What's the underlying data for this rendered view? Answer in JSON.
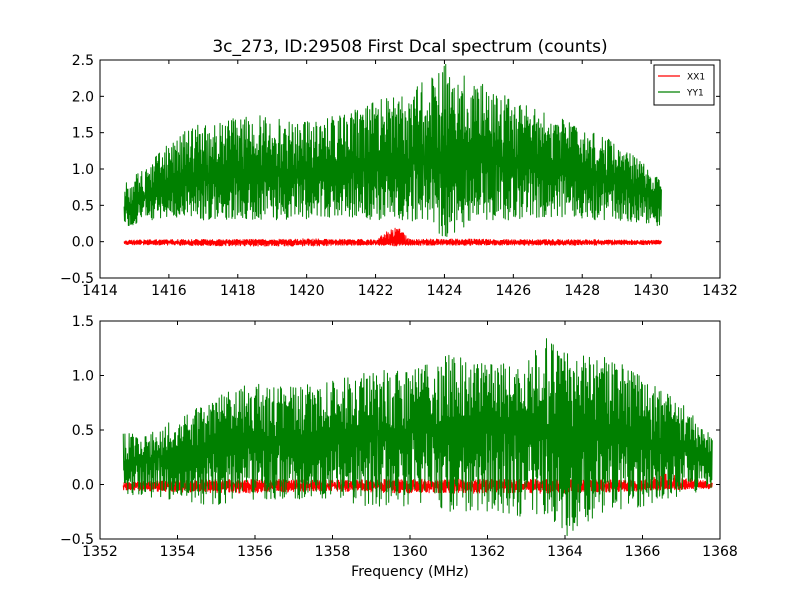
{
  "chart_data": [
    {
      "type": "line",
      "title": "3c_273, ID:29508 First Dcal spectrum (counts)",
      "xlabel": "",
      "ylabel": "",
      "xlim": [
        1414,
        1432
      ],
      "ylim": [
        -0.5,
        2.5
      ],
      "x_ticks": [
        "1414",
        "1416",
        "1418",
        "1420",
        "1422",
        "1424",
        "1426",
        "1428",
        "1430",
        "1432"
      ],
      "y_ticks": [
        "−0.5",
        "0.0",
        "0.5",
        "1.0",
        "1.5",
        "2.0",
        "2.5"
      ],
      "x_range": [
        1414.7,
        1430.3
      ],
      "legend": {
        "position": "top-right",
        "entries": [
          {
            "label": "XX1",
            "color": "#ff0000"
          },
          {
            "label": "YY1",
            "color": "#008000"
          }
        ]
      },
      "series": [
        {
          "name": "XX1",
          "color": "#ff0000",
          "x": [
            1414.7,
            1416,
            1418,
            1420,
            1422,
            1422.6,
            1423,
            1424,
            1426,
            1428,
            1430,
            1430.3
          ],
          "center": [
            -0.01,
            -0.01,
            -0.01,
            -0.01,
            -0.01,
            -0.01,
            -0.01,
            -0.01,
            -0.01,
            -0.01,
            -0.01,
            -0.01
          ],
          "upper": [
            0.02,
            0.03,
            0.03,
            0.04,
            0.03,
            0.23,
            0.03,
            0.04,
            0.03,
            0.03,
            0.02,
            0.02
          ],
          "lower": [
            -0.04,
            -0.05,
            -0.06,
            -0.06,
            -0.05,
            -0.06,
            -0.05,
            -0.05,
            -0.05,
            -0.05,
            -0.04,
            -0.04
          ]
        },
        {
          "name": "YY1",
          "color": "#008000",
          "x": [
            1414.7,
            1415.5,
            1416,
            1417,
            1418,
            1419,
            1420,
            1421,
            1422,
            1423,
            1424,
            1425,
            1426,
            1427,
            1428,
            1429,
            1430,
            1430.3
          ],
          "center": [
            0.45,
            0.65,
            0.75,
            0.9,
            0.95,
            0.95,
            0.95,
            0.98,
            1.02,
            1.08,
            1.1,
            1.1,
            1.08,
            1.05,
            0.95,
            0.85,
            0.65,
            0.55
          ],
          "upper": [
            0.8,
            1.1,
            1.4,
            1.65,
            1.7,
            1.75,
            1.65,
            1.75,
            1.95,
            2.05,
            2.45,
            2.2,
            1.95,
            1.75,
            1.6,
            1.35,
            1.0,
            0.85
          ],
          "lower": [
            0.2,
            0.3,
            0.35,
            0.3,
            0.3,
            0.3,
            0.3,
            0.35,
            0.3,
            0.3,
            0.05,
            0.3,
            0.3,
            0.35,
            0.3,
            0.3,
            0.25,
            0.2
          ]
        }
      ]
    },
    {
      "type": "line",
      "title": "",
      "xlabel": "Frequency (MHz)",
      "ylabel": "",
      "xlim": [
        1352,
        1368
      ],
      "ylim": [
        -0.5,
        1.5
      ],
      "x_ticks": [
        "1352",
        "1354",
        "1356",
        "1358",
        "1360",
        "1362",
        "1364",
        "1366",
        "1368"
      ],
      "y_ticks": [
        "−0.5",
        "0.0",
        "0.5",
        "1.0",
        "1.5"
      ],
      "x_range": [
        1352.6,
        1367.8
      ],
      "series": [
        {
          "name": "",
          "color": "#ff0000",
          "x": [
            1352.6,
            1354,
            1356,
            1358,
            1360,
            1362,
            1364,
            1366,
            1366.6,
            1367.8
          ],
          "center": [
            -0.01,
            -0.01,
            -0.01,
            -0.01,
            -0.01,
            -0.01,
            -0.01,
            -0.01,
            -0.01,
            -0.01
          ],
          "upper": [
            0.02,
            0.04,
            0.05,
            0.04,
            0.05,
            0.05,
            0.05,
            0.04,
            0.1,
            0.02
          ],
          "lower": [
            -0.05,
            -0.07,
            -0.08,
            -0.06,
            -0.08,
            -0.08,
            -0.08,
            -0.06,
            -0.05,
            -0.04
          ]
        },
        {
          "name": "",
          "color": "#008000",
          "x": [
            1352.6,
            1353,
            1354,
            1355,
            1356,
            1357,
            1358,
            1359,
            1360,
            1361,
            1362,
            1363,
            1363.5,
            1364,
            1365,
            1366,
            1367,
            1367.8
          ],
          "center": [
            0.2,
            0.22,
            0.28,
            0.35,
            0.38,
            0.4,
            0.42,
            0.45,
            0.48,
            0.5,
            0.5,
            0.5,
            0.5,
            0.5,
            0.48,
            0.42,
            0.35,
            0.25
          ],
          "upper": [
            0.5,
            0.45,
            0.6,
            0.8,
            0.95,
            0.9,
            0.95,
            1.05,
            1.05,
            1.2,
            1.1,
            1.15,
            1.35,
            1.2,
            1.2,
            1.0,
            0.75,
            0.45
          ],
          "lower": [
            -0.1,
            -0.1,
            -0.15,
            -0.2,
            -0.15,
            -0.15,
            -0.15,
            -0.2,
            -0.2,
            -0.25,
            -0.25,
            -0.3,
            -0.3,
            -0.48,
            -0.25,
            -0.2,
            -0.1,
            -0.05
          ]
        }
      ]
    }
  ]
}
